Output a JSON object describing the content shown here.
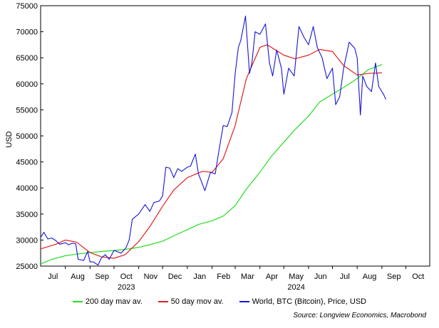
{
  "chart_data": {
    "type": "line",
    "ylabel": "USD",
    "ylim": [
      25000,
      75000
    ],
    "yticks": [
      25000,
      30000,
      35000,
      40000,
      45000,
      50000,
      55000,
      60000,
      65000,
      70000,
      75000
    ],
    "x_range": [
      "2023-07-01",
      "2024-10-31"
    ],
    "x_month_labels": [
      "Jul",
      "Aug",
      "Sep",
      "Oct",
      "Nov",
      "Dec",
      "Jan",
      "Feb",
      "Mar",
      "Apr",
      "May",
      "Jun",
      "Jul",
      "Aug",
      "Sep",
      "Oct"
    ],
    "x_year_labels": [
      {
        "label": "2023",
        "date": "2023-10-01"
      },
      {
        "label": "2024",
        "date": "2024-05-01"
      }
    ],
    "grid": false,
    "legend_position": "bottom",
    "source": "Source: Longview Economics, Macrobond",
    "series": [
      {
        "name": "200 day mav av.",
        "color": "#22dd22",
        "points": [
          [
            "2023-07-01",
            25400
          ],
          [
            "2023-07-15",
            26300
          ],
          [
            "2023-08-01",
            27000
          ],
          [
            "2023-08-15",
            27300
          ],
          [
            "2023-09-01",
            27600
          ],
          [
            "2023-09-15",
            27800
          ],
          [
            "2023-10-01",
            28000
          ],
          [
            "2023-10-15",
            28200
          ],
          [
            "2023-11-01",
            28600
          ],
          [
            "2023-11-15",
            29100
          ],
          [
            "2023-12-01",
            29800
          ],
          [
            "2023-12-15",
            30800
          ],
          [
            "2024-01-01",
            32000
          ],
          [
            "2024-01-15",
            33000
          ],
          [
            "2024-02-01",
            33700
          ],
          [
            "2024-02-15",
            34600
          ],
          [
            "2024-03-01",
            36600
          ],
          [
            "2024-03-15",
            39800
          ],
          [
            "2024-04-01",
            43000
          ],
          [
            "2024-04-15",
            46000
          ],
          [
            "2024-05-01",
            48800
          ],
          [
            "2024-05-15",
            51200
          ],
          [
            "2024-06-01",
            53800
          ],
          [
            "2024-06-15",
            56500
          ],
          [
            "2024-07-01",
            58000
          ],
          [
            "2024-07-15",
            59300
          ],
          [
            "2024-08-01",
            61000
          ],
          [
            "2024-08-15",
            62700
          ],
          [
            "2024-09-01",
            63700
          ]
        ]
      },
      {
        "name": "50 day mov av.",
        "color": "#e02020",
        "points": [
          [
            "2023-07-01",
            28300
          ],
          [
            "2023-07-20",
            29200
          ],
          [
            "2023-08-01",
            30000
          ],
          [
            "2023-08-15",
            29600
          ],
          [
            "2023-09-01",
            27600
          ],
          [
            "2023-09-15",
            26800
          ],
          [
            "2023-10-01",
            26500
          ],
          [
            "2023-10-15",
            27200
          ],
          [
            "2023-11-01",
            29700
          ],
          [
            "2023-11-15",
            32600
          ],
          [
            "2023-12-01",
            36500
          ],
          [
            "2023-12-15",
            39600
          ],
          [
            "2024-01-01",
            42000
          ],
          [
            "2024-01-20",
            43200
          ],
          [
            "2024-02-01",
            43000
          ],
          [
            "2024-02-15",
            45600
          ],
          [
            "2024-03-01",
            52000
          ],
          [
            "2024-03-15",
            61000
          ],
          [
            "2024-04-01",
            67000
          ],
          [
            "2024-04-10",
            67500
          ],
          [
            "2024-05-01",
            65500
          ],
          [
            "2024-05-15",
            64800
          ],
          [
            "2024-06-01",
            65500
          ],
          [
            "2024-06-15",
            66600
          ],
          [
            "2024-07-01",
            66200
          ],
          [
            "2024-07-15",
            63500
          ],
          [
            "2024-08-01",
            61700
          ],
          [
            "2024-08-15",
            62000
          ],
          [
            "2024-09-01",
            62100
          ]
        ]
      },
      {
        "name": "World, BTC (Bitcoin), Price, USD",
        "color": "#1515d8",
        "points": [
          [
            "2023-07-01",
            30500
          ],
          [
            "2023-07-05",
            31500
          ],
          [
            "2023-07-10",
            30200
          ],
          [
            "2023-07-15",
            30400
          ],
          [
            "2023-07-20",
            29900
          ],
          [
            "2023-07-25",
            29200
          ],
          [
            "2023-08-01",
            29500
          ],
          [
            "2023-08-05",
            29100
          ],
          [
            "2023-08-10",
            29400
          ],
          [
            "2023-08-14",
            29300
          ],
          [
            "2023-08-17",
            26300
          ],
          [
            "2023-08-24",
            26100
          ],
          [
            "2023-08-29",
            27800
          ],
          [
            "2023-09-01",
            25800
          ],
          [
            "2023-09-05",
            25800
          ],
          [
            "2023-09-11",
            25200
          ],
          [
            "2023-09-15",
            26500
          ],
          [
            "2023-09-20",
            27200
          ],
          [
            "2023-09-25",
            26300
          ],
          [
            "2023-10-01",
            28000
          ],
          [
            "2023-10-10",
            27500
          ],
          [
            "2023-10-16",
            28500
          ],
          [
            "2023-10-20",
            30000
          ],
          [
            "2023-10-24",
            34000
          ],
          [
            "2023-11-01",
            35000
          ],
          [
            "2023-11-09",
            36800
          ],
          [
            "2023-11-15",
            35500
          ],
          [
            "2023-11-20",
            37200
          ],
          [
            "2023-11-27",
            37500
          ],
          [
            "2023-12-01",
            38500
          ],
          [
            "2023-12-05",
            44000
          ],
          [
            "2023-12-10",
            43800
          ],
          [
            "2023-12-15",
            42000
          ],
          [
            "2023-12-20",
            43700
          ],
          [
            "2023-12-25",
            43200
          ],
          [
            "2024-01-01",
            44000
          ],
          [
            "2024-01-05",
            44200
          ],
          [
            "2024-01-11",
            46500
          ],
          [
            "2024-01-15",
            42700
          ],
          [
            "2024-01-23",
            39500
          ],
          [
            "2024-01-30",
            43000
          ],
          [
            "2024-02-05",
            42700
          ],
          [
            "2024-02-10",
            47500
          ],
          [
            "2024-02-15",
            52000
          ],
          [
            "2024-02-20",
            51800
          ],
          [
            "2024-02-26",
            54500
          ],
          [
            "2024-03-01",
            62000
          ],
          [
            "2024-03-05",
            67000
          ],
          [
            "2024-03-08",
            68300
          ],
          [
            "2024-03-14",
            73000
          ],
          [
            "2024-03-19",
            62000
          ],
          [
            "2024-03-22",
            64000
          ],
          [
            "2024-03-26",
            70000
          ],
          [
            "2024-04-01",
            69500
          ],
          [
            "2024-04-08",
            71500
          ],
          [
            "2024-04-13",
            64000
          ],
          [
            "2024-04-17",
            61500
          ],
          [
            "2024-04-22",
            66500
          ],
          [
            "2024-04-28",
            63000
          ],
          [
            "2024-05-01",
            58000
          ],
          [
            "2024-05-07",
            63000
          ],
          [
            "2024-05-14",
            61500
          ],
          [
            "2024-05-20",
            71000
          ],
          [
            "2024-05-26",
            69000
          ],
          [
            "2024-06-01",
            67500
          ],
          [
            "2024-06-07",
            71000
          ],
          [
            "2024-06-12",
            67000
          ],
          [
            "2024-06-18",
            65000
          ],
          [
            "2024-06-24",
            61000
          ],
          [
            "2024-07-01",
            63000
          ],
          [
            "2024-07-05",
            56000
          ],
          [
            "2024-07-10",
            57500
          ],
          [
            "2024-07-15",
            63000
          ],
          [
            "2024-07-22",
            68000
          ],
          [
            "2024-07-29",
            66800
          ],
          [
            "2024-08-01",
            65000
          ],
          [
            "2024-08-05",
            54000
          ],
          [
            "2024-08-08",
            61500
          ],
          [
            "2024-08-13",
            59500
          ],
          [
            "2024-08-19",
            58500
          ],
          [
            "2024-08-24",
            64000
          ],
          [
            "2024-08-28",
            59500
          ],
          [
            "2024-09-03",
            58000
          ],
          [
            "2024-09-06",
            57000
          ]
        ]
      }
    ]
  }
}
